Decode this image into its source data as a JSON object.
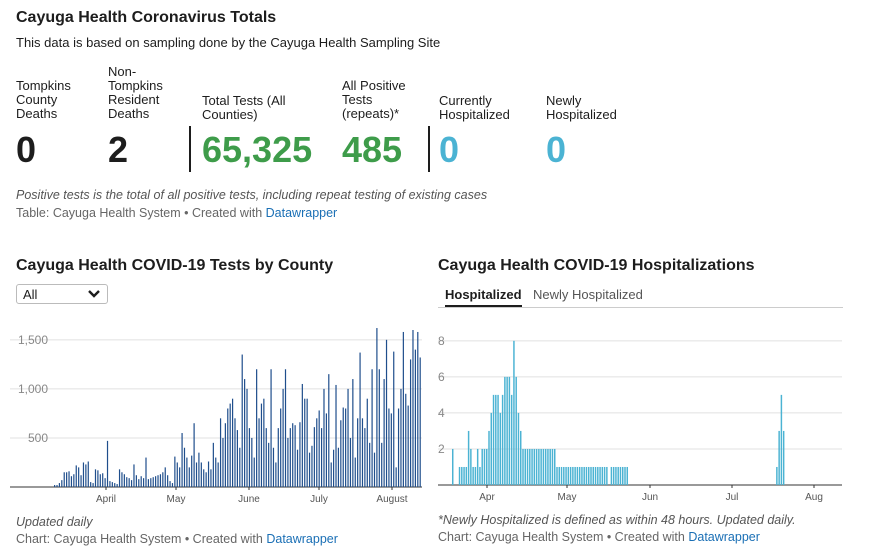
{
  "totals": {
    "title": "Cayuga Health Coronavirus Totals",
    "subtitle": "This data is based on sampling done by the Cayuga Health Sampling Site",
    "stats": [
      {
        "label": "Tompkins County Deaths",
        "value": "0",
        "color": "#1d1d1d"
      },
      {
        "label": "Non-Tompkins Resident Deaths",
        "value": "2",
        "color": "#1d1d1d"
      },
      {
        "label": "Total Tests (All Counties)",
        "value": "65,325",
        "color": "#3e9c4a"
      },
      {
        "label": "All Positive Tests (repeats)*",
        "value": "485",
        "color": "#3e9c4a"
      },
      {
        "label": "Currently Hospitalized",
        "value": "0",
        "color": "#4bb3d3"
      },
      {
        "label": "Newly Hospitalized",
        "value": "0",
        "color": "#4bb3d3"
      }
    ],
    "note": "Positive tests is the total of all positive tests, including repeat testing of existing cases",
    "source_prefix": "Table: Cayuga Health System • Created with",
    "source_link": "Datawrapper"
  },
  "tests_chart": {
    "title": "Cayuga Health COVID-19 Tests by County",
    "dropdown_value": "All",
    "note": "Updated daily",
    "source_prefix": "Chart: Cayuga Health System • Created with",
    "source_link": "Datawrapper"
  },
  "hosp_chart": {
    "title": "Cayuga Health COVID-19 Hospitalizations",
    "tabs": [
      "Hospitalized",
      "Newly Hospitalized"
    ],
    "active_tab": "Hospitalized",
    "note": "*Newly Hospitalized is defined as within 48 hours. Updated daily.",
    "source_prefix": "Chart: Cayuga Health System • Created with",
    "source_link": "Datawrapper"
  },
  "chart_data": [
    {
      "type": "bar",
      "title": "Cayuga Health COVID-19 Tests by County",
      "color": "#1f4e8c",
      "x_start": "2020-03-15",
      "x_ticks": [
        "April",
        "May",
        "June",
        "July",
        "August"
      ],
      "y_ticks": [
        "500",
        "1,000",
        "1,500"
      ],
      "ylim": [
        0,
        1600
      ],
      "grid": true,
      "values": [
        20,
        20,
        40,
        70,
        150,
        150,
        160,
        110,
        130,
        220,
        200,
        120,
        250,
        230,
        260,
        50,
        40,
        180,
        170,
        130,
        140,
        90,
        470,
        60,
        50,
        40,
        30,
        180,
        150,
        130,
        100,
        90,
        70,
        230,
        120,
        80,
        110,
        90,
        300,
        80,
        90,
        100,
        110,
        120,
        130,
        150,
        200,
        120,
        60,
        40,
        310,
        250,
        200,
        550,
        400,
        300,
        200,
        320,
        650,
        250,
        350,
        250,
        180,
        150,
        260,
        180,
        450,
        300,
        250,
        700,
        500,
        650,
        800,
        850,
        900,
        700,
        580,
        400,
        1350,
        1100,
        1000,
        600,
        500,
        300,
        1200,
        700,
        850,
        900,
        600,
        450,
        1200,
        400,
        250,
        600,
        800,
        1000,
        1200,
        500,
        600,
        650,
        630,
        380,
        660,
        1050,
        900,
        900,
        350,
        420,
        610,
        700,
        780,
        600,
        1000,
        750,
        1150,
        250,
        380,
        1040,
        400,
        680,
        810,
        800,
        1000,
        500,
        1100,
        300,
        700,
        1370,
        700,
        600,
        900,
        450,
        1200,
        350,
        1620,
        1200,
        450,
        1100,
        1500,
        800,
        750,
        1380,
        200,
        800,
        1000,
        1580,
        950,
        830,
        1300,
        1600,
        1400,
        1580,
        1320
      ]
    },
    {
      "type": "bar",
      "title": "Cayuga Health COVID-19 Hospitalizations",
      "color": "#4bb3d3",
      "x_start": "2020-03-21",
      "x_ticks": [
        "Apr",
        "May",
        "Jun",
        "Jul",
        "Aug"
      ],
      "y_ticks": [
        "2",
        "4",
        "6",
        "8"
      ],
      "ylim": [
        0,
        8.6
      ],
      "grid": true,
      "values": [
        2,
        0,
        0,
        1,
        1,
        1,
        1,
        3,
        2,
        1,
        1,
        2,
        1,
        2,
        2,
        2,
        3,
        4,
        5,
        5,
        5,
        4,
        5,
        6,
        6,
        6,
        5,
        8,
        6,
        4,
        3,
        2,
        2,
        2,
        2,
        2,
        2,
        2,
        2,
        2,
        2,
        2,
        2,
        2,
        2,
        2,
        1,
        1,
        1,
        1,
        1,
        1,
        1,
        1,
        1,
        1,
        1,
        1,
        1,
        1,
        1,
        1,
        1,
        1,
        1,
        1,
        1,
        1,
        1,
        0,
        1,
        1,
        1,
        1,
        1,
        1,
        1,
        1,
        0,
        0,
        0,
        0,
        0,
        0,
        0,
        0,
        0,
        0,
        0,
        0,
        0,
        0,
        0,
        0,
        0,
        0,
        0,
        0,
        0,
        0,
        0,
        0,
        0,
        0,
        0,
        0,
        0,
        0,
        0,
        0,
        0,
        0,
        0,
        0,
        0,
        0,
        0,
        0,
        0,
        0,
        0,
        0,
        0,
        0,
        0,
        0,
        0,
        0,
        0,
        0,
        0,
        0,
        0,
        0,
        0,
        0,
        0,
        0,
        0,
        0,
        0,
        0,
        0,
        1,
        3,
        5,
        3,
        0,
        0,
        0
      ]
    }
  ]
}
